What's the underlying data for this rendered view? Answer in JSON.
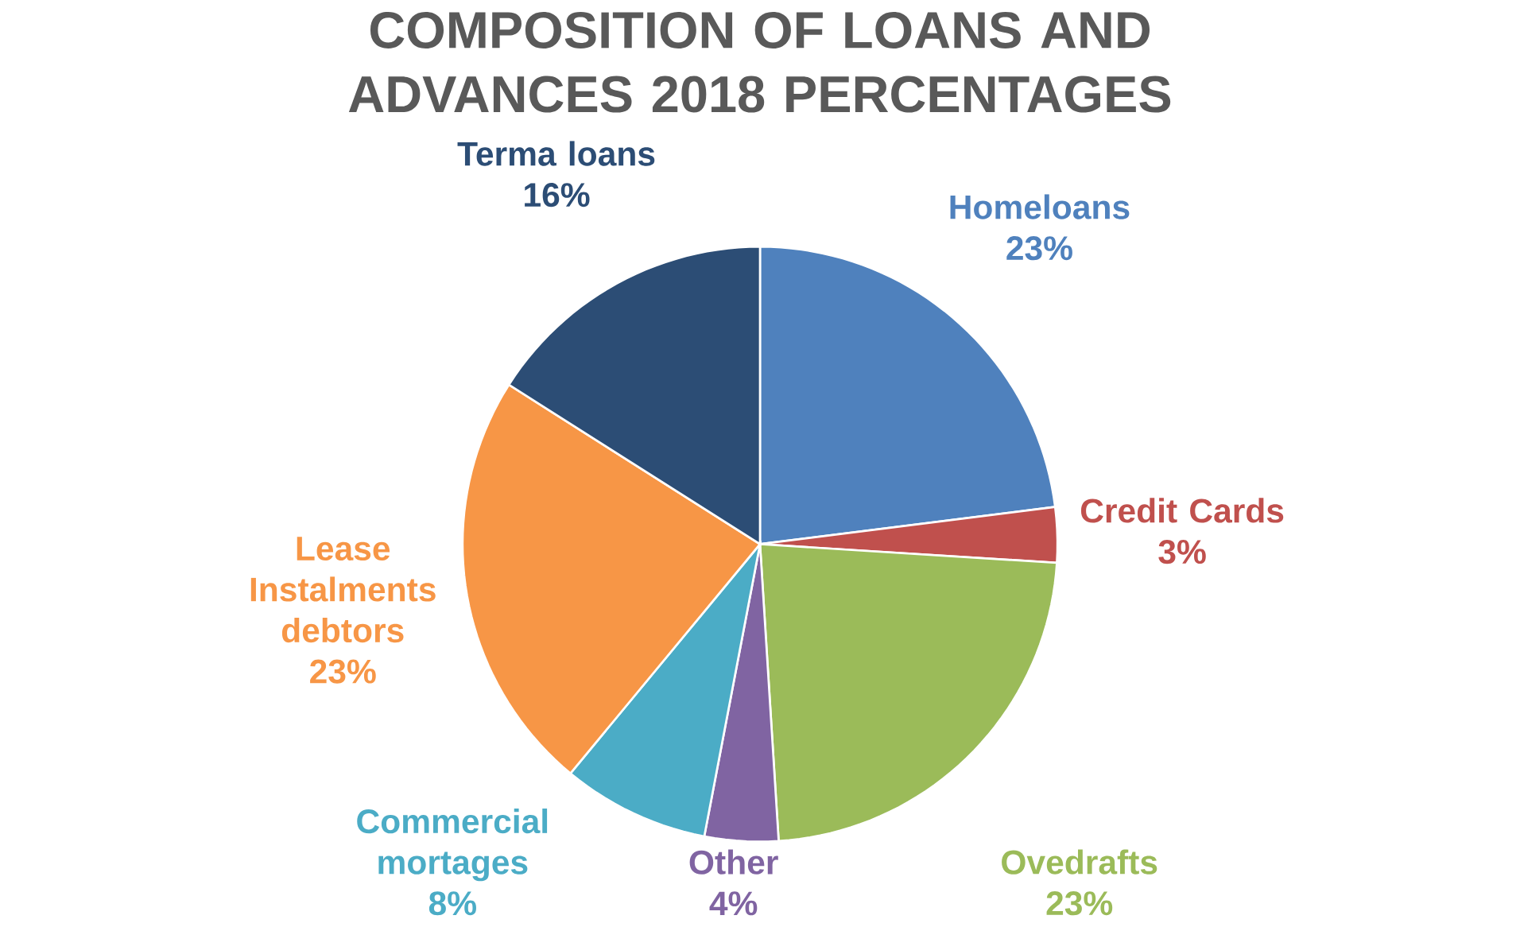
{
  "chart_data": {
    "type": "pie",
    "title": "COMPOSITION OF LOANS AND ADVANCES 2018 PERCENTAGES",
    "categories": [
      "Homeloans",
      "Credit Cards",
      "Ovedrafts",
      "Other",
      "Commercial mortages",
      "Lease Instalments debtors",
      "Terma loans"
    ],
    "values": [
      23,
      3,
      23,
      4,
      8,
      23,
      16
    ],
    "colors": [
      "#4f81bd",
      "#c0504d",
      "#9bbb59",
      "#8064a2",
      "#4bacc6",
      "#f79646",
      "#2c4d75"
    ],
    "value_labels": [
      "23%",
      "3%",
      "23%",
      "4%",
      "8%",
      "23%",
      "16%"
    ]
  }
}
